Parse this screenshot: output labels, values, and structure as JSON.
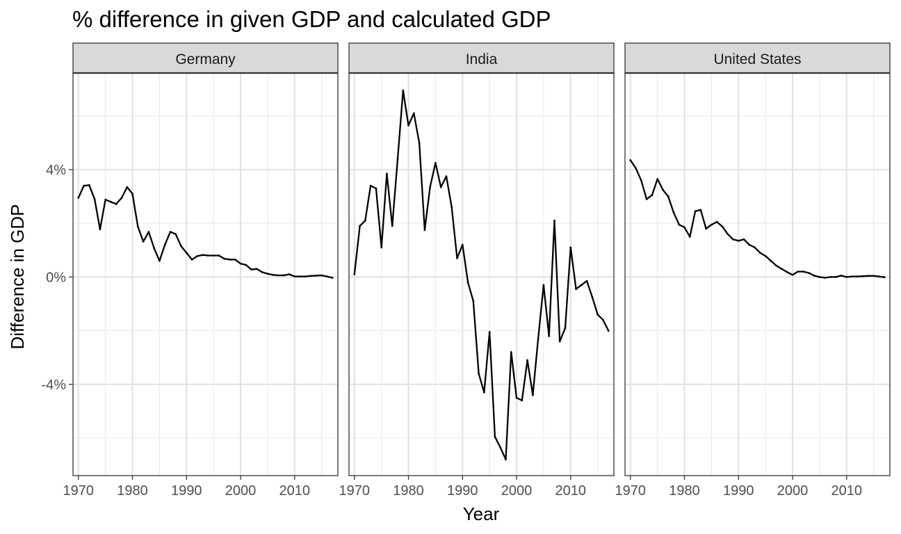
{
  "chart_data": {
    "type": "line",
    "title": "% difference in given GDP and calculated GDP",
    "xlabel": "Year",
    "ylabel": "Difference in GDP",
    "x_ticks": [
      1970,
      1980,
      1990,
      2000,
      2010
    ],
    "y_ticks": [
      -4,
      0,
      4
    ],
    "y_tick_labels": [
      "-4%",
      "0%",
      "4%"
    ],
    "xlim": [
      1969,
      2018
    ],
    "ylim": [
      -7.4,
      7.6
    ],
    "grid": true,
    "line_color": "#000000",
    "strip_fill": "#d9d9d9",
    "panels": [
      {
        "facet": "Germany",
        "x": [
          1970,
          1971,
          1972,
          1973,
          1974,
          1975,
          1976,
          1977,
          1978,
          1979,
          1980,
          1981,
          1982,
          1983,
          1984,
          1985,
          1986,
          1987,
          1988,
          1989,
          1990,
          1991,
          1992,
          1993,
          1994,
          1995,
          1996,
          1997,
          1998,
          1999,
          2000,
          2001,
          2002,
          2003,
          2004,
          2005,
          2006,
          2007,
          2008,
          2009,
          2010,
          2011,
          2012,
          2013,
          2014,
          2015,
          2016,
          2017
        ],
        "y": [
          2.95,
          3.4,
          3.42,
          2.9,
          1.78,
          2.88,
          2.8,
          2.72,
          2.95,
          3.35,
          3.1,
          1.88,
          1.32,
          1.68,
          1.08,
          0.6,
          1.2,
          1.68,
          1.6,
          1.15,
          0.9,
          0.65,
          0.78,
          0.82,
          0.8,
          0.8,
          0.8,
          0.68,
          0.65,
          0.65,
          0.5,
          0.45,
          0.28,
          0.3,
          0.18,
          0.12,
          0.08,
          0.06,
          0.06,
          0.1,
          0.02,
          0.02,
          0.02,
          0.04,
          0.05,
          0.06,
          0.02,
          -0.03
        ]
      },
      {
        "facet": "India",
        "x": [
          1970,
          1971,
          1972,
          1973,
          1974,
          1975,
          1976,
          1977,
          1978,
          1979,
          1980,
          1981,
          1982,
          1983,
          1984,
          1985,
          1986,
          1987,
          1988,
          1989,
          1990,
          1991,
          1992,
          1993,
          1994,
          1995,
          1996,
          1997,
          1998,
          1999,
          2000,
          2001,
          2002,
          2003,
          2004,
          2005,
          2006,
          2007,
          2008,
          2009,
          2010,
          2011,
          2012,
          2013,
          2014,
          2015,
          2016,
          2017
        ],
        "y": [
          0.1,
          1.9,
          2.1,
          3.4,
          3.3,
          1.1,
          3.85,
          1.9,
          4.4,
          6.95,
          5.65,
          6.1,
          5.0,
          1.75,
          3.35,
          4.25,
          3.35,
          3.75,
          2.6,
          0.7,
          1.2,
          -0.2,
          -0.9,
          -3.6,
          -4.3,
          -2.05,
          -5.95,
          -6.35,
          -6.8,
          -2.8,
          -4.5,
          -4.6,
          -3.1,
          -4.4,
          -2.3,
          -0.3,
          -2.2,
          2.1,
          -2.4,
          -1.9,
          1.1,
          -0.45,
          -0.3,
          -0.15,
          -0.75,
          -1.4,
          -1.6,
          -2.0
        ]
      },
      {
        "facet": "United States",
        "x": [
          1970,
          1971,
          1972,
          1973,
          1974,
          1975,
          1976,
          1977,
          1978,
          1979,
          1980,
          1981,
          1982,
          1983,
          1984,
          1985,
          1986,
          1987,
          1988,
          1989,
          1990,
          1991,
          1992,
          1993,
          1994,
          1995,
          1996,
          1997,
          1998,
          1999,
          2000,
          2001,
          2002,
          2003,
          2004,
          2005,
          2006,
          2007,
          2008,
          2009,
          2010,
          2011,
          2012,
          2013,
          2014,
          2015,
          2016,
          2017
        ],
        "y": [
          4.35,
          4.05,
          3.6,
          2.9,
          3.05,
          3.65,
          3.25,
          3.0,
          2.4,
          1.95,
          1.85,
          1.5,
          2.45,
          2.5,
          1.8,
          1.95,
          2.05,
          1.88,
          1.6,
          1.4,
          1.35,
          1.4,
          1.2,
          1.1,
          0.9,
          0.78,
          0.6,
          0.42,
          0.3,
          0.18,
          0.08,
          0.2,
          0.2,
          0.15,
          0.05,
          0.0,
          -0.03,
          0.0,
          0.0,
          0.05,
          0.0,
          0.02,
          0.02,
          0.03,
          0.04,
          0.04,
          0.02,
          -0.01
        ]
      }
    ]
  }
}
